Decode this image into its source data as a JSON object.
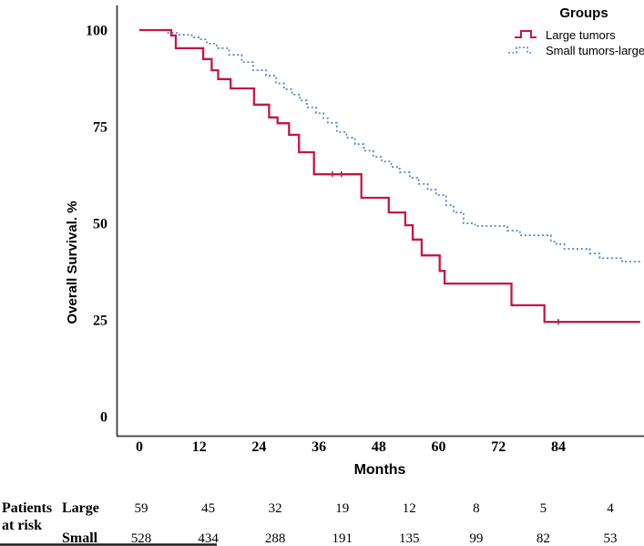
{
  "figure": {
    "background": "#ffffff",
    "axis_color": "#3d3d3d",
    "border_fragment_color": "#1f1f1f"
  },
  "chart_data": {
    "type": "line",
    "subtype": "kaplan-meier-step",
    "title": "",
    "xlabel": "Months",
    "ylabel": "Overall Survival. %",
    "xlim": [
      0,
      101
    ],
    "ylim": [
      0,
      100
    ],
    "x_ticks": [
      0,
      12,
      24,
      36,
      48,
      60,
      72,
      84
    ],
    "y_ticks": [
      100,
      75,
      50,
      25,
      0
    ],
    "grid": false,
    "legend": {
      "title": "Groups",
      "position": "top-right",
      "entries": [
        {
          "label": "Large tumors",
          "color": "#c41747",
          "line_style": "solid"
        },
        {
          "label": "Small tumors-large",
          "color": "#5282c8",
          "line_style": "dotted"
        }
      ]
    },
    "series": [
      {
        "name": "Large tumors",
        "color": "#c41747",
        "style": "solid",
        "steps": [
          [
            0,
            100
          ],
          [
            6.4,
            98.6
          ],
          [
            7.3,
            95.3
          ],
          [
            12.8,
            92.5
          ],
          [
            14.5,
            89.6
          ],
          [
            15.8,
            87.3
          ],
          [
            18.3,
            84.9
          ],
          [
            23,
            80.7
          ],
          [
            26,
            77.4
          ],
          [
            27.7,
            75.9
          ],
          [
            30,
            72.9
          ],
          [
            32,
            68.4
          ],
          [
            35,
            62.7
          ],
          [
            44.5,
            56.6
          ],
          [
            50,
            52.8
          ],
          [
            53.3,
            49.5
          ],
          [
            54.8,
            45.8
          ],
          [
            56.6,
            41.7
          ],
          [
            60.2,
            37.7
          ],
          [
            61.2,
            34.4
          ],
          [
            74.6,
            28.8
          ],
          [
            81.2,
            24.5
          ],
          [
            100.4,
            24.5
          ]
        ]
      },
      {
        "name": "Small tumors-large",
        "color": "#5282c8",
        "style": "dotted",
        "steps": [
          [
            0,
            100
          ],
          [
            5.5,
            99.3
          ],
          [
            8,
            98.8
          ],
          [
            10.5,
            98.1
          ],
          [
            12,
            97.6
          ],
          [
            13.5,
            96.5
          ],
          [
            15.5,
            95.3
          ],
          [
            18,
            93.6
          ],
          [
            20.5,
            91.7
          ],
          [
            22.8,
            89.6
          ],
          [
            25.4,
            88.2
          ],
          [
            27.4,
            86.2
          ],
          [
            29,
            84.7
          ],
          [
            30.6,
            83.3
          ],
          [
            32.2,
            81.8
          ],
          [
            33.6,
            80.0
          ],
          [
            35.4,
            78.5
          ],
          [
            36.9,
            77.2
          ],
          [
            37.8,
            76.0
          ],
          [
            39.6,
            73.6
          ],
          [
            41.5,
            72.2
          ],
          [
            43.2,
            70.5
          ],
          [
            45,
            68.8
          ],
          [
            46.9,
            67.2
          ],
          [
            48.6,
            66.0
          ],
          [
            50.5,
            64.6
          ],
          [
            52.2,
            63.2
          ],
          [
            54.2,
            61.8
          ],
          [
            56,
            60.2
          ],
          [
            57.8,
            58.7
          ],
          [
            59.5,
            57.3
          ],
          [
            61.5,
            54.7
          ],
          [
            63,
            52.8
          ],
          [
            65,
            50.0
          ],
          [
            67.3,
            49.3
          ],
          [
            73.8,
            48.1
          ],
          [
            76.3,
            46.9
          ],
          [
            82.5,
            45.3
          ],
          [
            83.6,
            44.6
          ],
          [
            85.2,
            43.4
          ],
          [
            90.3,
            42.2
          ],
          [
            92.3,
            41.0
          ],
          [
            96.8,
            40.1
          ],
          [
            100.4,
            40.1
          ]
        ]
      }
    ],
    "censor_marks": {
      "series": "Large tumors",
      "points": [
        [
          38.7,
          62.7
        ],
        [
          40.5,
          62.7
        ],
        [
          84,
          24.5
        ]
      ]
    },
    "risk_table": {
      "row_header_line1": "Patients",
      "row_header_line2": "at risk",
      "columns_months": [
        0,
        12,
        24,
        36,
        48,
        60,
        72,
        84
      ],
      "rows": [
        {
          "label": "Large",
          "values": [
            59,
            45,
            32,
            19,
            12,
            8,
            5,
            4
          ]
        },
        {
          "label": "Small",
          "values": [
            528,
            434,
            288,
            191,
            135,
            99,
            82,
            53
          ]
        }
      ]
    }
  }
}
